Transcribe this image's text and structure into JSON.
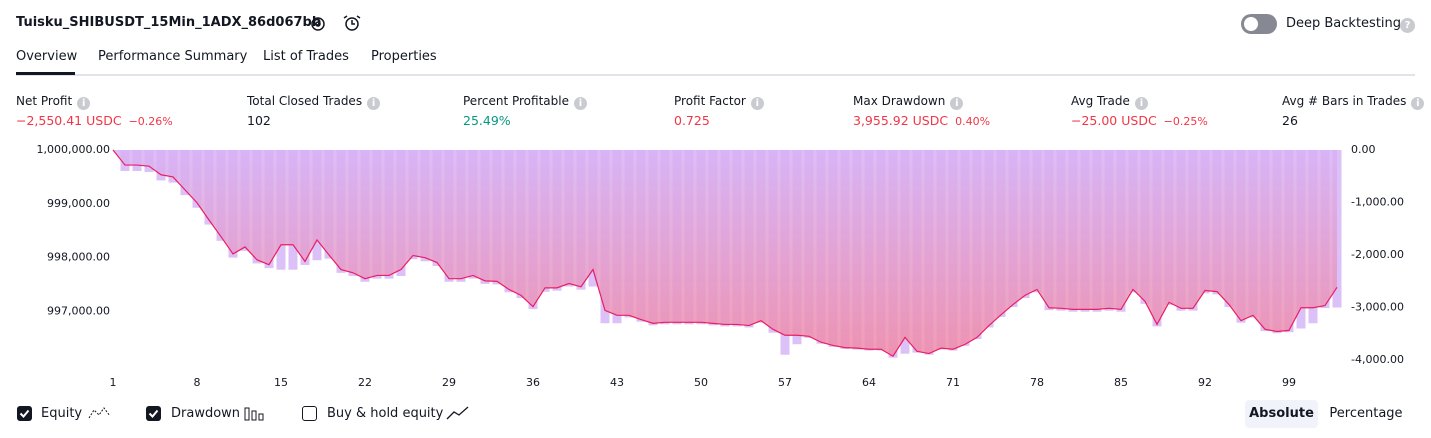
{
  "header": {
    "title": "Tuisku_SHIBUSDT_15Min_1ADX_86d067bb",
    "deep_backtesting": "Deep Backtesting"
  },
  "tabs": [
    "Overview",
    "Performance Summary",
    "List of Trades",
    "Properties"
  ],
  "metrics": [
    {
      "label": "Net Profit",
      "value": "−2,550.41 USDC",
      "pct": "−0.26%",
      "color": "#f23645"
    },
    {
      "label": "Total Closed Trades",
      "value": "102",
      "color": "#131722"
    },
    {
      "label": "Percent Profitable",
      "value": "25.49%",
      "color": "#089981"
    },
    {
      "label": "Profit Factor",
      "value": "0.725",
      "color": "#f23645"
    },
    {
      "label": "Max Drawdown",
      "value": "3,955.92 USDC",
      "pct": "0.40%",
      "color": "#f23645"
    },
    {
      "label": "Avg Trade",
      "value": "−25.00 USDC",
      "pct": "−0.25%",
      "color": "#f23645"
    },
    {
      "label": "Avg # Bars in Trades",
      "value": "26",
      "color": "#131722"
    }
  ],
  "chart_data": {
    "type": "equity_drawdown",
    "x": [
      1,
      2,
      3,
      4,
      5,
      6,
      7,
      8,
      9,
      10,
      11,
      12,
      13,
      14,
      15,
      16,
      17,
      18,
      19,
      20,
      21,
      22,
      23,
      24,
      25,
      26,
      27,
      28,
      29,
      30,
      31,
      32,
      33,
      34,
      35,
      36,
      37,
      38,
      39,
      40,
      41,
      42,
      43,
      44,
      45,
      46,
      47,
      48,
      49,
      50,
      51,
      52,
      53,
      54,
      55,
      56,
      57,
      58,
      59,
      60,
      61,
      62,
      63,
      64,
      65,
      66,
      67,
      68,
      69,
      70,
      71,
      72,
      73,
      74,
      75,
      76,
      77,
      78,
      79,
      80,
      81,
      82,
      83,
      84,
      85,
      86,
      87,
      88,
      89,
      90,
      91,
      92,
      93,
      94,
      95,
      96,
      97,
      98,
      99,
      100,
      101,
      102,
      103
    ],
    "xlim": [
      1,
      103
    ],
    "xticks": [
      1,
      8,
      15,
      22,
      29,
      36,
      43,
      50,
      57,
      64,
      71,
      78,
      85,
      92,
      99
    ],
    "ylim": [
      996100,
      1000000
    ],
    "yticks": [
      {
        "value": 997000,
        "label": "997,000.00"
      },
      {
        "value": 998000,
        "label": "998,000.00"
      },
      {
        "value": 999000,
        "label": "999,000.00"
      },
      {
        "value": 1000000,
        "label": "1,000,000.00"
      }
    ],
    "y2lim": [
      -4000,
      0
    ],
    "y2ticks": [
      {
        "value": -4000,
        "label": "-4,000.00"
      },
      {
        "value": -3000,
        "label": "-3,000.00"
      },
      {
        "value": -2000,
        "label": "-2,000.00"
      },
      {
        "value": -1000,
        "label": "-1,000.00"
      },
      {
        "value": 0,
        "label": "0.00"
      }
    ],
    "grid": false,
    "series": [
      {
        "name": "Equity",
        "color": "#e91e63",
        "fill_top": "#d7b2f6",
        "fill_bottom": "#f08aa6",
        "values": [
          1000000,
          999720,
          999720,
          999700,
          999540,
          999500,
          999260,
          999020,
          998700,
          998390,
          998070,
          998200,
          997960,
          997870,
          998240,
          998240,
          997930,
          998330,
          998050,
          997780,
          997720,
          997610,
          997670,
          997670,
          997780,
          998040,
          998000,
          997910,
          997610,
          997610,
          997670,
          997570,
          997560,
          997410,
          997300,
          997090,
          997440,
          997440,
          997520,
          997460,
          997780,
          997020,
          996930,
          996930,
          996850,
          996780,
          996800,
          996800,
          996800,
          996800,
          996780,
          996760,
          996760,
          996740,
          996830,
          996670,
          996560,
          996560,
          996540,
          996430,
          996370,
          996330,
          996320,
          996300,
          996300,
          996170,
          996520,
          996260,
          996220,
          996320,
          996300,
          996390,
          996520,
          996740,
          996940,
          997130,
          997300,
          997410,
          997070,
          997060,
          997040,
          997040,
          997040,
          997060,
          997040,
          997410,
          997190,
          996760,
          997170,
          997060,
          997060,
          997390,
          997370,
          997130,
          996830,
          996930,
          996670,
          996630,
          996650,
          997070,
          997070,
          997110,
          997450
        ]
      },
      {
        "name": "Drawdown",
        "color": "#dcc0f8",
        "axis": "y2",
        "values": [
          0,
          -400,
          -400,
          -420,
          -580,
          -620,
          -860,
          -1100,
          -1420,
          -1730,
          -2050,
          -1920,
          -2160,
          -2250,
          -2280,
          -2280,
          -2190,
          -2100,
          -2070,
          -2340,
          -2400,
          -2510,
          -2450,
          -2450,
          -2400,
          -2080,
          -2120,
          -2210,
          -2510,
          -2510,
          -2450,
          -2550,
          -2560,
          -2710,
          -2820,
          -3030,
          -2700,
          -2680,
          -2600,
          -2660,
          -2600,
          -3300,
          -3300,
          -3190,
          -3270,
          -3340,
          -3320,
          -3320,
          -3320,
          -3320,
          -3340,
          -3360,
          -3360,
          -3380,
          -3290,
          -3480,
          -3900,
          -3700,
          -3580,
          -3690,
          -3750,
          -3790,
          -3800,
          -3820,
          -3820,
          -3955.92,
          -3880,
          -3860,
          -3900,
          -3800,
          -3820,
          -3730,
          -3600,
          -3380,
          -3180,
          -2990,
          -2820,
          -2710,
          -3050,
          -3060,
          -3080,
          -3080,
          -3080,
          -3060,
          -3080,
          -2710,
          -2930,
          -3360,
          -2950,
          -3060,
          -3060,
          -2730,
          -2750,
          -2990,
          -3290,
          -3190,
          -3450,
          -3490,
          -3470,
          -3400,
          -3300,
          -3010,
          -3000
        ]
      }
    ]
  },
  "toggles": {
    "buy_hold": "Buy & hold equity",
    "absolute": "Absolute",
    "percentage": "Percentage"
  }
}
